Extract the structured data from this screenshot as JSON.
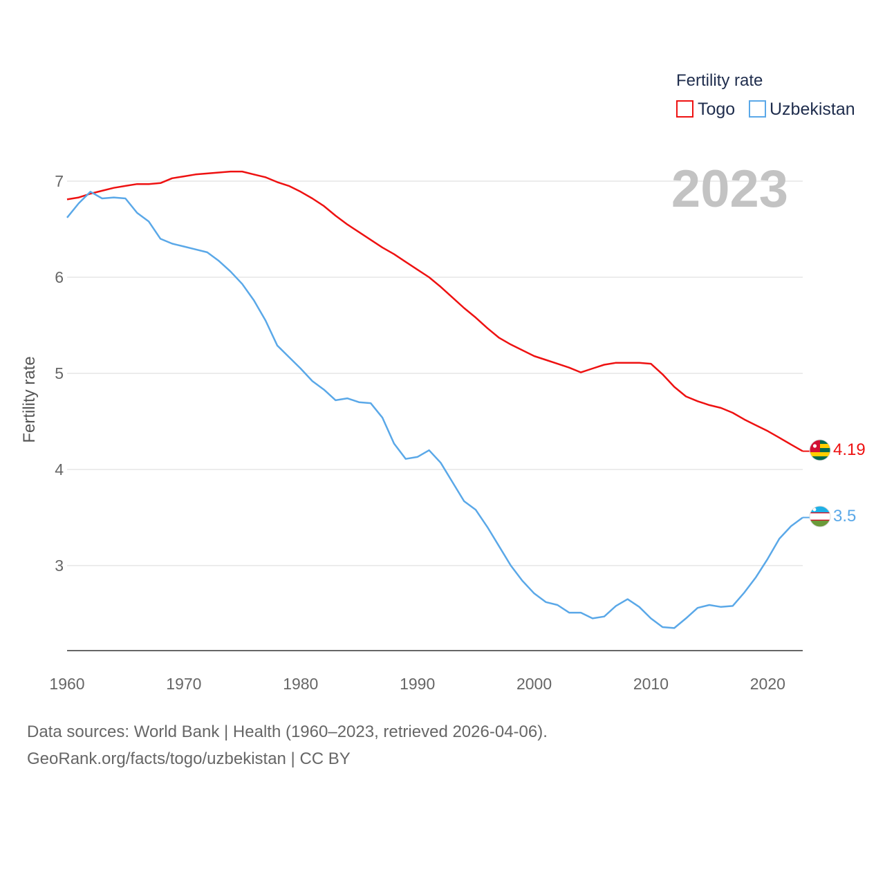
{
  "chart_data": {
    "type": "line",
    "ylabel": "Fertility rate",
    "xlabel": "",
    "xlim": [
      1960,
      2023
    ],
    "ylim": [
      2.1,
      7.35
    ],
    "x_ticks": [
      1960,
      1970,
      1980,
      1990,
      2000,
      2010,
      2020
    ],
    "y_ticks": [
      3,
      4,
      5,
      6,
      7
    ],
    "grid": true,
    "legend_title": "Fertility rate",
    "legend_position": "top-right",
    "year_label": "2023",
    "x": [
      1960,
      1961,
      1962,
      1963,
      1964,
      1965,
      1966,
      1967,
      1968,
      1969,
      1970,
      1971,
      1972,
      1973,
      1974,
      1975,
      1976,
      1977,
      1978,
      1979,
      1980,
      1981,
      1982,
      1983,
      1984,
      1985,
      1986,
      1987,
      1988,
      1989,
      1990,
      1991,
      1992,
      1993,
      1994,
      1995,
      1996,
      1997,
      1998,
      1999,
      2000,
      2001,
      2002,
      2003,
      2004,
      2005,
      2006,
      2007,
      2008,
      2009,
      2010,
      2011,
      2012,
      2013,
      2014,
      2015,
      2016,
      2017,
      2018,
      2019,
      2020,
      2021,
      2022,
      2023
    ],
    "series": [
      {
        "name": "Togo",
        "color": "#ee1111",
        "end_label": "4.19",
        "flag": "togo-flag-icon",
        "values": [
          6.81,
          6.83,
          6.87,
          6.9,
          6.93,
          6.95,
          6.97,
          6.97,
          6.98,
          7.03,
          7.05,
          7.07,
          7.08,
          7.09,
          7.1,
          7.1,
          7.07,
          7.04,
          6.99,
          6.95,
          6.89,
          6.82,
          6.74,
          6.64,
          6.55,
          6.47,
          6.39,
          6.31,
          6.24,
          6.16,
          6.08,
          6.0,
          5.9,
          5.79,
          5.68,
          5.58,
          5.47,
          5.37,
          5.3,
          5.24,
          5.18,
          5.14,
          5.1,
          5.06,
          5.01,
          5.05,
          5.09,
          5.11,
          5.11,
          5.11,
          5.1,
          4.99,
          4.86,
          4.76,
          4.71,
          4.67,
          4.64,
          4.59,
          4.52,
          4.46,
          4.4,
          4.33,
          4.26,
          4.19
        ]
      },
      {
        "name": "Uzbekistan",
        "color": "#5aa8e8",
        "end_label": "3.5",
        "flag": "uzbekistan-flag-icon",
        "values": [
          6.62,
          6.77,
          6.89,
          6.82,
          6.83,
          6.82,
          6.67,
          6.58,
          6.4,
          6.35,
          6.32,
          6.29,
          6.26,
          6.17,
          6.06,
          5.93,
          5.76,
          5.55,
          5.29,
          5.17,
          5.05,
          4.92,
          4.83,
          4.72,
          4.74,
          4.7,
          4.69,
          4.54,
          4.27,
          4.11,
          4.13,
          4.2,
          4.07,
          3.87,
          3.67,
          3.58,
          3.4,
          3.2,
          3.0,
          2.84,
          2.71,
          2.62,
          2.59,
          2.51,
          2.51,
          2.45,
          2.47,
          2.58,
          2.65,
          2.57,
          2.45,
          2.36,
          2.35,
          2.45,
          2.56,
          2.59,
          2.57,
          2.58,
          2.72,
          2.88,
          3.07,
          3.28,
          3.41,
          3.5
        ]
      }
    ]
  },
  "footer": {
    "sources": "Data sources: World Bank | Health (1960–2023, retrieved 2026-04-06).",
    "credit": "GeoRank.org/facts/togo/uzbekistan | CC BY"
  }
}
